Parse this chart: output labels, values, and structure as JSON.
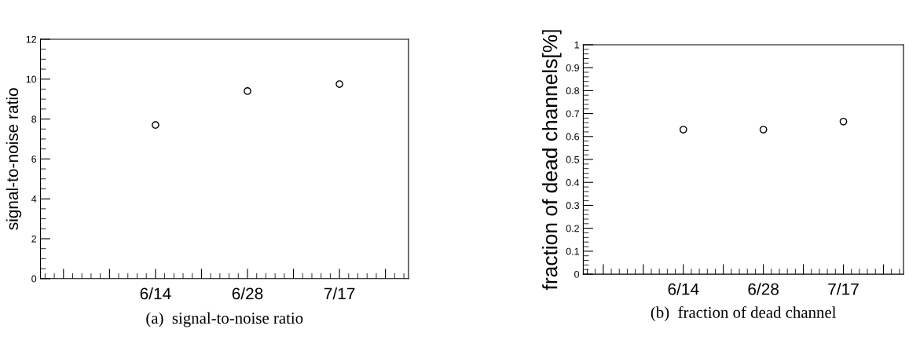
{
  "chart_data": [
    {
      "type": "scatter",
      "ylabel": "signal-to-noise ratio",
      "annotations": [
        "(a)  signal-to-noise ratio"
      ],
      "categories": [
        null,
        null,
        "6/14",
        null,
        "6/28",
        null,
        "7/17",
        null
      ],
      "ylim": [
        0,
        12
      ],
      "yticks": [
        0,
        2,
        4,
        6,
        8,
        10,
        12
      ],
      "marker": "circle",
      "series": [
        {
          "color": "#000000",
          "values": [
            null,
            null,
            7.7,
            null,
            9.4,
            null,
            9.75,
            null
          ]
        }
      ]
    },
    {
      "type": "scatter",
      "ylabel": "fraction of dead channels[%]",
      "annotations": [
        "(b)  fraction of dead channel"
      ],
      "categories": [
        null,
        null,
        "6/14",
        null,
        "6/28",
        null,
        "7/17",
        null
      ],
      "ylim": [
        0,
        1
      ],
      "yticks": [
        0,
        0.1,
        0.2,
        0.3,
        0.4,
        0.5,
        0.6,
        0.7,
        0.8,
        0.9,
        1
      ],
      "marker": "circle",
      "series": [
        {
          "color": "#000000",
          "values": [
            null,
            null,
            0.63,
            null,
            0.63,
            null,
            0.665,
            null
          ]
        }
      ]
    }
  ]
}
